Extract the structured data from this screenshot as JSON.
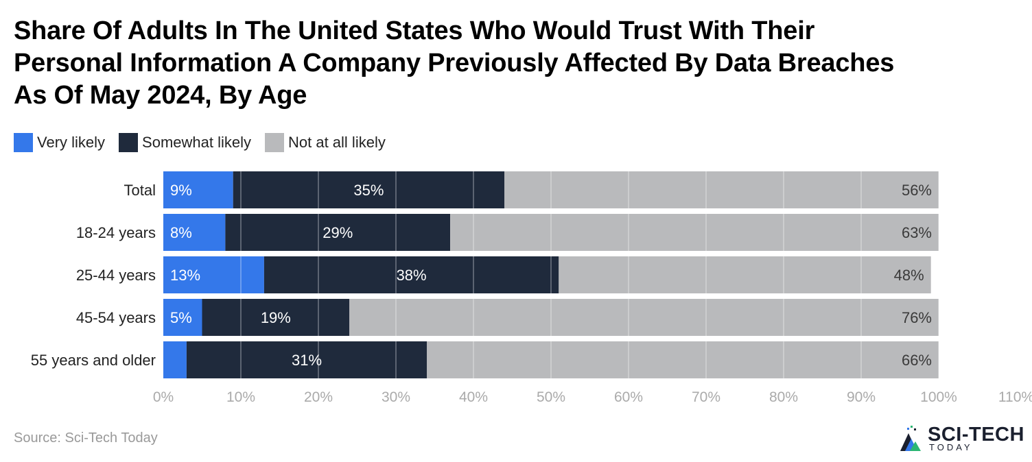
{
  "title_lines": [
    "Share Of Adults In The United States Who Would Trust With Their",
    "Personal Information A Company Previously Affected By Data Breaches",
    "As Of May 2024, By Age"
  ],
  "legend": [
    {
      "label": "Very likely",
      "color": "#3478ea"
    },
    {
      "label": "Somewhat likely",
      "color": "#1f2a3c"
    },
    {
      "label": "Not at all likely",
      "color": "#b9babc"
    }
  ],
  "source": "Source: Sci-Tech Today",
  "brand": {
    "name": "SCI-TECH",
    "sub": "TODAY"
  },
  "chart_data": {
    "type": "bar",
    "orientation": "horizontal",
    "stacked": true,
    "title": "Share Of Adults In The United States Who Would Trust With Their Personal Information A Company Previously Affected By Data Breaches As Of May 2024, By Age",
    "categories": [
      "Total",
      "18-24 years",
      "25-44 years",
      "45-54 years",
      "55 years and older"
    ],
    "series": [
      {
        "name": "Very likely",
        "color": "#3478ea",
        "values": [
          9,
          8,
          13,
          5,
          3
        ],
        "labels": [
          "9%",
          "8%",
          "13%",
          "5%",
          ""
        ]
      },
      {
        "name": "Somewhat likely",
        "color": "#1f2a3c",
        "values": [
          35,
          29,
          38,
          19,
          31
        ],
        "labels": [
          "35%",
          "29%",
          "38%",
          "19%",
          "31%"
        ]
      },
      {
        "name": "Not at all likely",
        "color": "#b9babc",
        "values": [
          56,
          63,
          48,
          76,
          66
        ],
        "labels": [
          "56%",
          "63%",
          "48%",
          "76%",
          "66%"
        ]
      }
    ],
    "xlim": [
      0,
      110
    ],
    "xticks": [
      "0%",
      "10%",
      "20%",
      "30%",
      "40%",
      "50%",
      "60%",
      "70%",
      "80%",
      "90%",
      "100%",
      "110%"
    ],
    "grid": true,
    "legend_position": "top-left"
  }
}
